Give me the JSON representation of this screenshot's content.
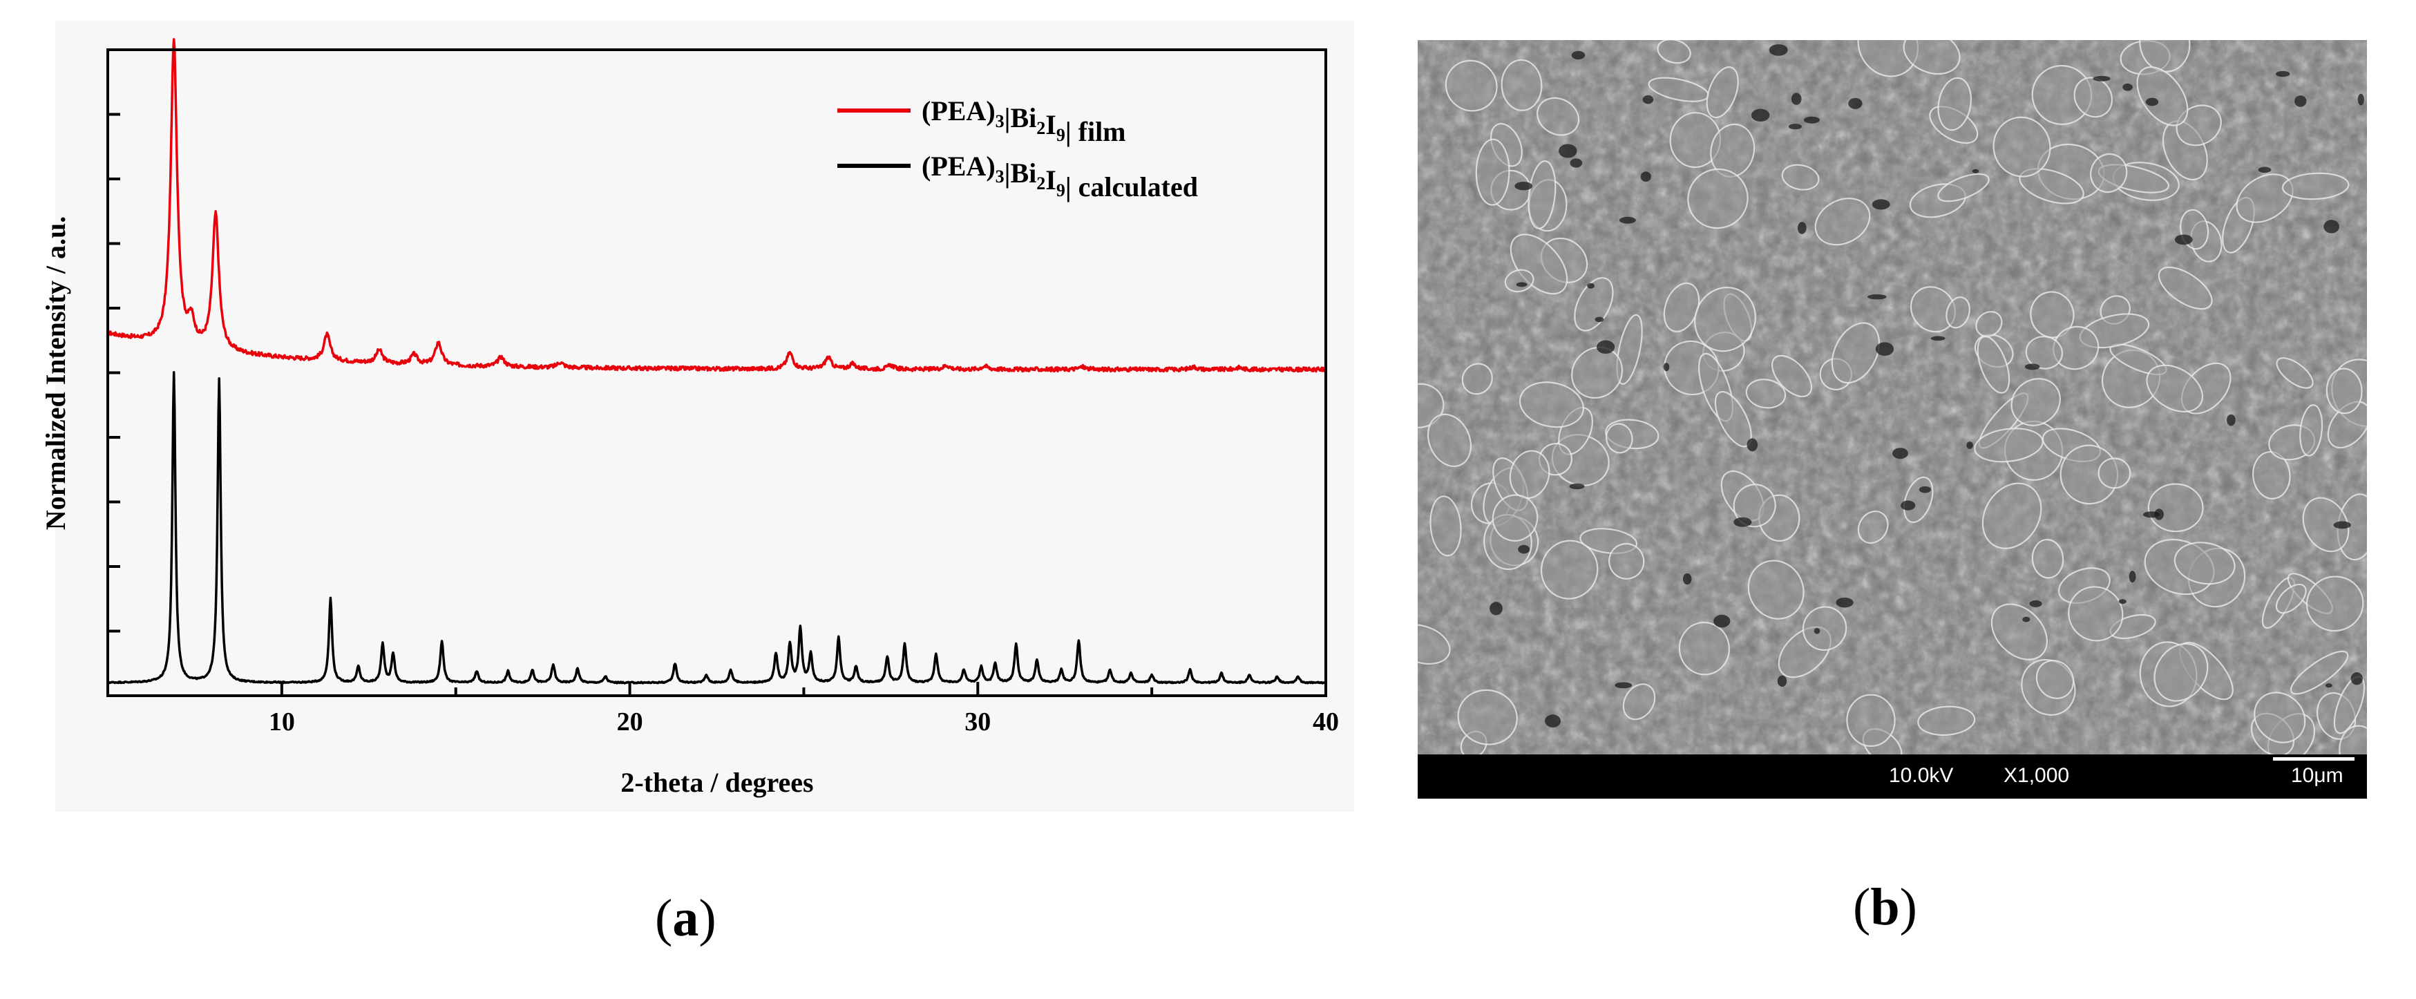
{
  "chart_data": {
    "type": "line",
    "xlabel": "2-theta / degrees",
    "ylabel": "Normalized Intensity / a.u.",
    "xlim": [
      5,
      40
    ],
    "ylim": [
      0,
      10
    ],
    "x_ticks": [
      10,
      20,
      30,
      40
    ],
    "y_tick_step": 1,
    "legend_position": "top-right",
    "series": [
      {
        "name": "film",
        "legend_main": "(PEA)",
        "legend_sub1": "3",
        "legend_mid": "|Bi",
        "legend_sub2": "2",
        "legend_mid2": "I",
        "legend_sub3": "9",
        "legend_tail": "| film",
        "color": "#e8000b",
        "baseline": 5.05,
        "peaks": [
          [
            6.9,
            4.7
          ],
          [
            8.1,
            2.1
          ],
          [
            7.4,
            0.35
          ],
          [
            11.3,
            0.4
          ],
          [
            12.8,
            0.2
          ],
          [
            13.8,
            0.15
          ],
          [
            14.5,
            0.35
          ],
          [
            16.3,
            0.15
          ],
          [
            18.0,
            0.08
          ],
          [
            24.6,
            0.25
          ],
          [
            25.7,
            0.18
          ],
          [
            26.4,
            0.08
          ],
          [
            27.5,
            0.06
          ],
          [
            29.1,
            0.06
          ],
          [
            30.2,
            0.05
          ],
          [
            33.0,
            0.04
          ],
          [
            36.2,
            0.04
          ],
          [
            37.5,
            0.03
          ]
        ]
      },
      {
        "name": "calculated",
        "legend_main": "(PEA)",
        "legend_sub1": "3",
        "legend_mid": "|Bi",
        "legend_sub2": "2",
        "legend_mid2": "I",
        "legend_sub3": "9",
        "legend_tail": "| calculated",
        "color": "#000000",
        "baseline": 0.2,
        "peaks": [
          [
            6.9,
            4.8
          ],
          [
            8.2,
            4.7
          ],
          [
            11.4,
            1.3
          ],
          [
            12.2,
            0.25
          ],
          [
            12.9,
            0.6
          ],
          [
            13.2,
            0.45
          ],
          [
            14.6,
            0.65
          ],
          [
            15.6,
            0.18
          ],
          [
            16.5,
            0.18
          ],
          [
            17.2,
            0.2
          ],
          [
            17.8,
            0.28
          ],
          [
            18.5,
            0.22
          ],
          [
            19.3,
            0.1
          ],
          [
            21.3,
            0.3
          ],
          [
            22.2,
            0.12
          ],
          [
            22.9,
            0.2
          ],
          [
            24.2,
            0.45
          ],
          [
            24.6,
            0.6
          ],
          [
            24.9,
            0.85
          ],
          [
            25.2,
            0.45
          ],
          [
            26.0,
            0.7
          ],
          [
            26.5,
            0.25
          ],
          [
            27.4,
            0.4
          ],
          [
            27.9,
            0.6
          ],
          [
            28.8,
            0.45
          ],
          [
            29.6,
            0.2
          ],
          [
            30.1,
            0.25
          ],
          [
            30.5,
            0.3
          ],
          [
            31.1,
            0.6
          ],
          [
            31.7,
            0.35
          ],
          [
            32.4,
            0.2
          ],
          [
            32.9,
            0.65
          ],
          [
            33.8,
            0.2
          ],
          [
            34.4,
            0.15
          ],
          [
            35.0,
            0.12
          ],
          [
            36.1,
            0.2
          ],
          [
            37.0,
            0.15
          ],
          [
            37.8,
            0.12
          ],
          [
            38.6,
            0.1
          ],
          [
            39.2,
            0.1
          ]
        ]
      }
    ]
  },
  "panels": {
    "a_label": "a",
    "b_label": "b"
  },
  "sem": {
    "voltage": "10.0kV",
    "magnification": "X1,000",
    "scale_bar": "10μm"
  }
}
